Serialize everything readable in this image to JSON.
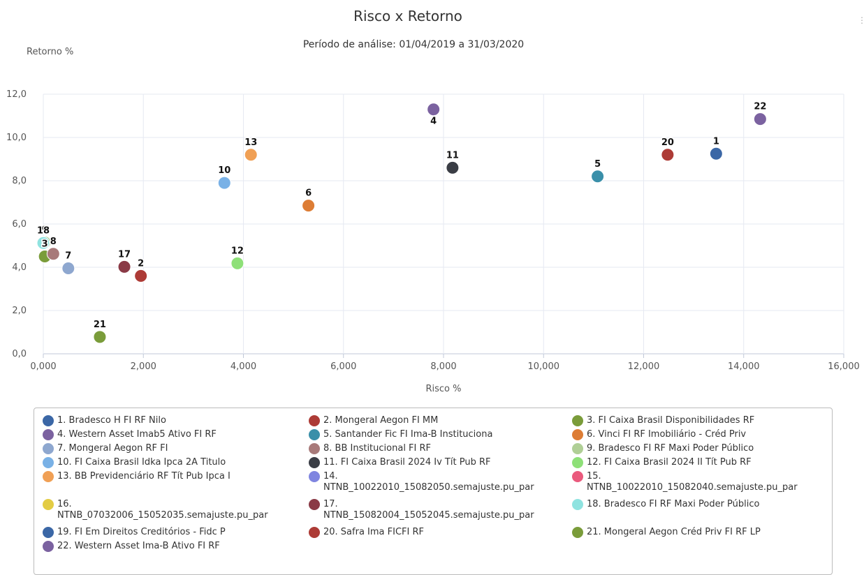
{
  "chart_data": {
    "type": "scatter",
    "title": "Risco x Retorno",
    "subtitle": "Período de análise: 01/04/2019 a 31/03/2020",
    "xlabel": "Risco %",
    "ylabel": "Retorno %",
    "xlim": [
      0,
      16
    ],
    "ylim": [
      0,
      12
    ],
    "xticks": [
      "0,000",
      "2,000",
      "4,000",
      "6,000",
      "8,000",
      "10,000",
      "12,000",
      "14,000",
      "16,000"
    ],
    "yticks": [
      "0,0",
      "2,0",
      "4,0",
      "6,0",
      "8,0",
      "10,0",
      "12,0"
    ],
    "grid": true,
    "legend_position": "bottom",
    "series": [
      {
        "label": "1",
        "legend": "1. Bradesco H FI RF Nilo",
        "color": "#3b67a6",
        "x": 13.45,
        "y": 9.25
      },
      {
        "label": "2",
        "legend": "2. Mongeral Aegon FI MM",
        "color": "#ad3b36",
        "x": 1.95,
        "y": 3.6
      },
      {
        "label": "3",
        "legend": "3. FI Caixa Brasil Disponibilidades RF",
        "color": "#7a9c3a",
        "x": 0.03,
        "y": 4.5
      },
      {
        "label": "4",
        "legend": "4. Western Asset Imab5 Ativo FI RF",
        "color": "#7b62a0",
        "x": 7.8,
        "y": 11.3
      },
      {
        "label": "5",
        "legend": "5. Santander Fic FI Ima-B Instituciona",
        "color": "#3a8fa9",
        "x": 11.08,
        "y": 8.2
      },
      {
        "label": "6",
        "legend": "6. Vinci FI RF Imobiliário - Créd Priv",
        "color": "#dd7d35",
        "x": 5.3,
        "y": 6.85
      },
      {
        "label": "7",
        "legend": "7. Mongeral Aegon RF FI",
        "color": "#8ea7cf",
        "x": 0.5,
        "y": 3.95
      },
      {
        "label": "8",
        "legend": "8. BB Institucional FI RF",
        "color": "#a87a7a",
        "x": 0.2,
        "y": 4.62
      },
      {
        "label": "9",
        "legend": "9. Bradesco FI RF Maxi Poder Público",
        "color": "#b0cf96",
        "x": 0.03,
        "y": 5.15
      },
      {
        "label": "10",
        "legend": "10. FI Caixa Brasil Idka Ipca 2A Titulo",
        "color": "#79b1e6",
        "x": 3.62,
        "y": 7.9
      },
      {
        "label": "11",
        "legend": "11. FI Caixa Brasil 2024 Iv Tít Pub RF",
        "color": "#3a3d45",
        "x": 8.18,
        "y": 8.6
      },
      {
        "label": "12",
        "legend": "12. FI Caixa Brasil 2024 II Tít Pub RF",
        "color": "#8ee078",
        "x": 3.88,
        "y": 4.18
      },
      {
        "label": "13",
        "legend": "13. BB Previdenciário RF Tít Pub Ipca I",
        "color": "#f0a055",
        "x": 4.15,
        "y": 9.2
      },
      {
        "label": "14",
        "legend": "14.\nNTNB_10022010_15082050.semajuste.pu_par",
        "color": "#7f85e0",
        "x": null,
        "y": null
      },
      {
        "label": "15",
        "legend": "15.\nNTNB_10022010_15082040.semajuste.pu_par",
        "color": "#ea5a7d",
        "x": null,
        "y": null
      },
      {
        "label": "16",
        "legend": "16.\nNTNB_07032006_15052035.semajuste.pu_par",
        "color": "#e3cc44",
        "x": null,
        "y": null
      },
      {
        "label": "17",
        "legend": "17.\nNTNB_15082004_15052045.semajuste.pu_par",
        "color": "#8a3a46",
        "x": 1.62,
        "y": 4.02
      },
      {
        "label": "18",
        "legend": "18. Bradesco FI RF Maxi Poder Público",
        "color": "#8fe3e0",
        "x": 0.0,
        "y": 5.12
      },
      {
        "label": "19",
        "legend": "19. FI Em Direitos Creditórios - Fidc P",
        "color": "#3b67a6",
        "x": null,
        "y": null
      },
      {
        "label": "20",
        "legend": "20. Safra Ima FICFI RF",
        "color": "#ad3b36",
        "x": 12.48,
        "y": 9.2
      },
      {
        "label": "21",
        "legend": "21. Mongeral Aegon Créd Priv FI RF LP",
        "color": "#7a9c3a",
        "x": 1.13,
        "y": 0.78
      },
      {
        "label": "22",
        "legend": "22. Western Asset Ima-B Ativo FI RF",
        "color": "#7b62a0",
        "x": 14.33,
        "y": 10.85
      }
    ]
  }
}
